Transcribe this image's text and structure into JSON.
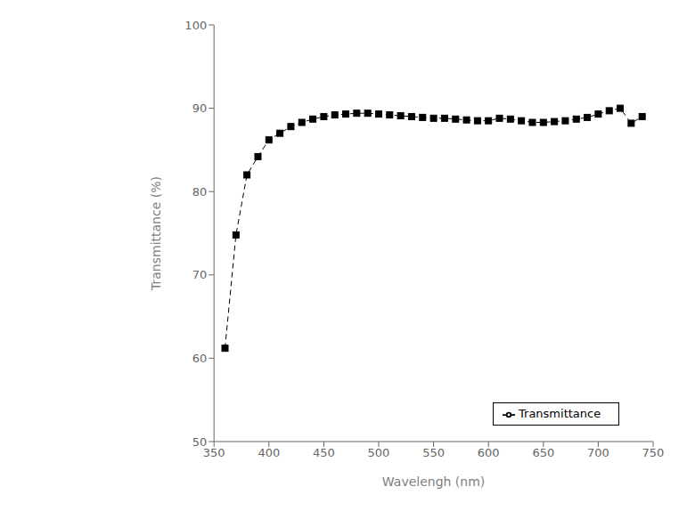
{
  "chart_data": {
    "type": "line",
    "x": [
      360,
      370,
      380,
      390,
      400,
      410,
      420,
      430,
      440,
      450,
      460,
      470,
      480,
      490,
      500,
      510,
      520,
      530,
      540,
      550,
      560,
      570,
      580,
      590,
      600,
      610,
      620,
      630,
      640,
      650,
      660,
      670,
      680,
      690,
      700,
      710,
      720,
      730,
      740
    ],
    "series": [
      {
        "name": "Transmittance",
        "color": "#000000",
        "marker": "square",
        "line_style": "dashed",
        "values": [
          61.2,
          74.8,
          82.0,
          84.2,
          86.2,
          87.0,
          87.8,
          88.3,
          88.7,
          89.0,
          89.2,
          89.3,
          89.4,
          89.4,
          89.3,
          89.2,
          89.1,
          89.0,
          88.9,
          88.8,
          88.8,
          88.7,
          88.6,
          88.5,
          88.5,
          88.8,
          88.7,
          88.5,
          88.3,
          88.3,
          88.4,
          88.5,
          88.7,
          88.9,
          89.3,
          89.7,
          90.0,
          88.2,
          89.0
        ]
      }
    ],
    "xlabel": "Wavelengh (nm)",
    "ylabel": "Transmittance (%)",
    "xlim": [
      350,
      750
    ],
    "ylim": [
      50,
      100
    ],
    "xticks": [
      350,
      400,
      450,
      500,
      550,
      600,
      650,
      700,
      750
    ],
    "yticks": [
      50,
      60,
      70,
      80,
      90,
      100
    ],
    "legend": "lower right",
    "grid": false
  }
}
